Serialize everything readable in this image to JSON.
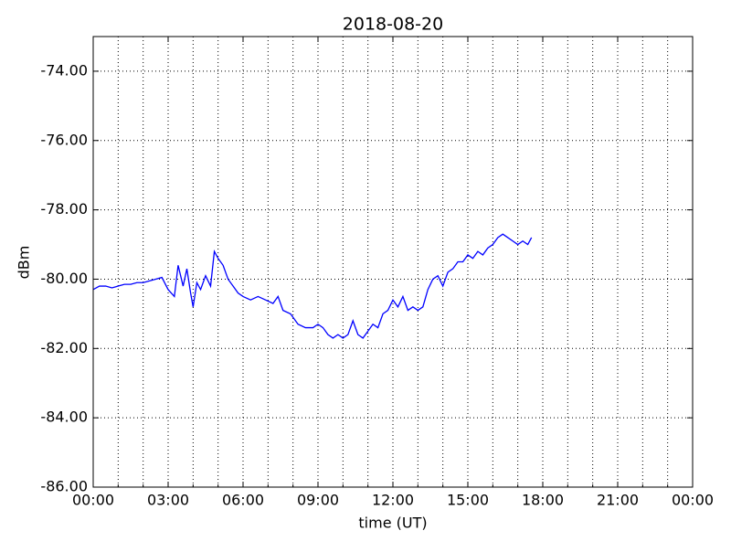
{
  "chart_data": {
    "type": "line",
    "title": "2018-08-20",
    "xlabel": "time (UT)",
    "ylabel": "dBm",
    "color": "#0000ff",
    "grid": true,
    "x": [
      0,
      0.25,
      0.5,
      0.75,
      1.0,
      1.25,
      1.5,
      1.75,
      2.0,
      2.25,
      2.5,
      2.75,
      3.0,
      3.25,
      3.4,
      3.6,
      3.75,
      3.9,
      4.0,
      4.15,
      4.3,
      4.5,
      4.7,
      4.85,
      5.0,
      5.2,
      5.4,
      5.6,
      5.8,
      6.0,
      6.3,
      6.6,
      6.9,
      7.2,
      7.4,
      7.6,
      7.9,
      8.2,
      8.5,
      8.8,
      9.0,
      9.2,
      9.4,
      9.6,
      9.8,
      10.0,
      10.2,
      10.4,
      10.6,
      10.8,
      11.0,
      11.2,
      11.4,
      11.6,
      11.8,
      12.0,
      12.2,
      12.4,
      12.6,
      12.8,
      13.0,
      13.2,
      13.4,
      13.6,
      13.8,
      14.0,
      14.2,
      14.4,
      14.6,
      14.8,
      15.0,
      15.2,
      15.4,
      15.6,
      15.8,
      16.0,
      16.2,
      16.4,
      16.6,
      16.8,
      17.0,
      17.2,
      17.4,
      17.55
    ],
    "values": [
      -80.3,
      -80.2,
      -80.2,
      -80.25,
      -80.2,
      -80.15,
      -80.15,
      -80.1,
      -80.1,
      -80.05,
      -80.0,
      -79.95,
      -80.3,
      -80.5,
      -79.6,
      -80.2,
      -79.7,
      -80.4,
      -80.8,
      -80.1,
      -80.3,
      -79.9,
      -80.2,
      -79.2,
      -79.4,
      -79.6,
      -80.0,
      -80.2,
      -80.4,
      -80.5,
      -80.6,
      -80.5,
      -80.6,
      -80.7,
      -80.5,
      -80.9,
      -81.0,
      -81.3,
      -81.4,
      -81.4,
      -81.3,
      -81.4,
      -81.6,
      -81.7,
      -81.6,
      -81.7,
      -81.6,
      -81.2,
      -81.6,
      -81.7,
      -81.5,
      -81.3,
      -81.4,
      -81.0,
      -80.9,
      -80.6,
      -80.8,
      -80.5,
      -80.9,
      -80.8,
      -80.9,
      -80.8,
      -80.3,
      -80.0,
      -79.9,
      -80.2,
      -79.8,
      -79.7,
      -79.5,
      -79.5,
      -79.3,
      -79.4,
      -79.2,
      -79.3,
      -79.1,
      -79.0,
      -78.8,
      -78.7,
      -78.8,
      -78.9,
      -79.0,
      -78.9,
      -79.0,
      -78.8
    ],
    "xlim": [
      0,
      24
    ],
    "xticks": [
      {
        "value": 0,
        "label": "00:00"
      },
      {
        "value": 3,
        "label": "03:00"
      },
      {
        "value": 6,
        "label": "06:00"
      },
      {
        "value": 9,
        "label": "09:00"
      },
      {
        "value": 12,
        "label": "12:00"
      },
      {
        "value": 15,
        "label": "15:00"
      },
      {
        "value": 18,
        "label": "18:00"
      },
      {
        "value": 21,
        "label": "21:00"
      },
      {
        "value": 24,
        "label": "00:00"
      }
    ],
    "x_minor_ticks": [
      1,
      2,
      4,
      5,
      7,
      8,
      10,
      11,
      13,
      14,
      16,
      17,
      19,
      20,
      22,
      23
    ],
    "ylim": [
      -86,
      -73
    ],
    "yticks": [
      {
        "value": -86,
        "label": "-86.00"
      },
      {
        "value": -84,
        "label": "-84.00"
      },
      {
        "value": -82,
        "label": "-82.00"
      },
      {
        "value": -80,
        "label": "-80.00"
      },
      {
        "value": -78,
        "label": "-78.00"
      },
      {
        "value": -76,
        "label": "-76.00"
      },
      {
        "value": -74,
        "label": "-74.00"
      }
    ]
  }
}
